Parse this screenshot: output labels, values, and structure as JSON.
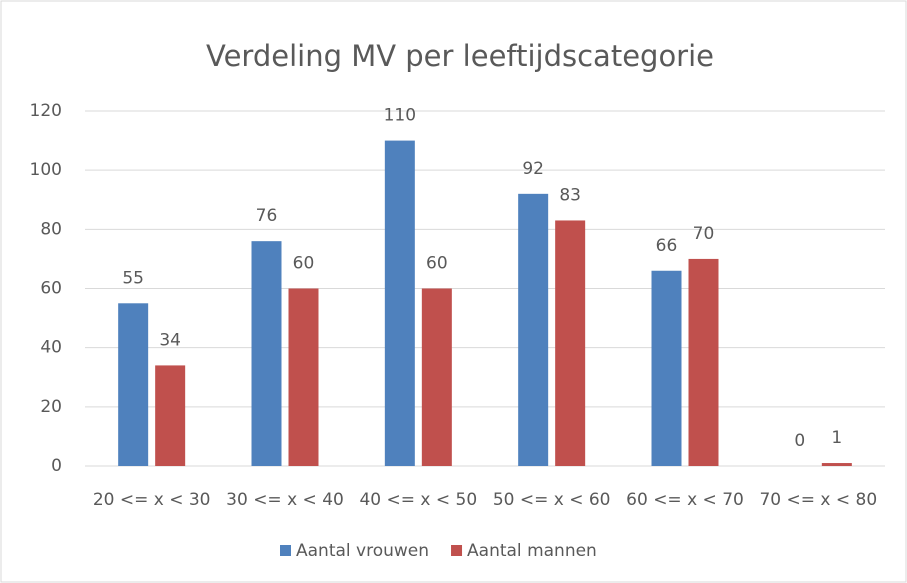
{
  "chart_data": {
    "type": "bar",
    "title": "Verdeling MV per leeftijdscategorie",
    "categories": [
      "20 <= x < 30",
      "30 <= x < 40",
      "40 <= x < 50",
      "50 <= x < 60",
      "60 <= x < 70",
      "70 <= x < 80"
    ],
    "series": [
      {
        "name": "Aantal vrouwen",
        "color": "#4f81bd",
        "values": [
          55,
          76,
          110,
          92,
          66,
          0
        ]
      },
      {
        "name": "Aantal mannen",
        "color": "#c0504d",
        "values": [
          34,
          60,
          60,
          83,
          70,
          1
        ]
      }
    ],
    "ylim": [
      0,
      120
    ],
    "yticks": [
      0,
      20,
      40,
      60,
      80,
      100,
      120
    ],
    "grid": true,
    "legend": "bottom"
  }
}
